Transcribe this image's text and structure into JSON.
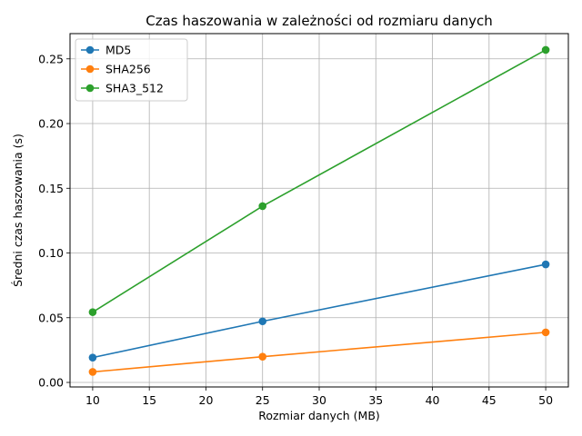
{
  "chart_data": {
    "type": "line",
    "title": "Czas haszowania w zależności od rozmiaru danych",
    "xlabel": "Rozmiar danych (MB)",
    "ylabel": "Średni czas haszowania (s)",
    "x": [
      10,
      25,
      50
    ],
    "xlim": [
      8,
      52
    ],
    "ylim": [
      -0.0035,
      0.2695
    ],
    "xticks": [
      10,
      15,
      20,
      25,
      30,
      35,
      40,
      45,
      50
    ],
    "yticks": [
      0.0,
      0.05,
      0.1,
      0.15,
      0.2,
      0.25
    ],
    "ytick_labels": [
      "0.00",
      "0.05",
      "0.10",
      "0.15",
      "0.20",
      "0.25"
    ],
    "grid": true,
    "legend_position": "top-left",
    "series": [
      {
        "name": "MD5",
        "color": "#1f77b4",
        "values": [
          0.0192,
          0.0472,
          0.0912
        ]
      },
      {
        "name": "SHA256",
        "color": "#ff7f0e",
        "values": [
          0.0081,
          0.0199,
          0.0387
        ]
      },
      {
        "name": "SHA3_512",
        "color": "#2ca02c",
        "values": [
          0.0543,
          0.1362,
          0.2569
        ]
      }
    ]
  }
}
